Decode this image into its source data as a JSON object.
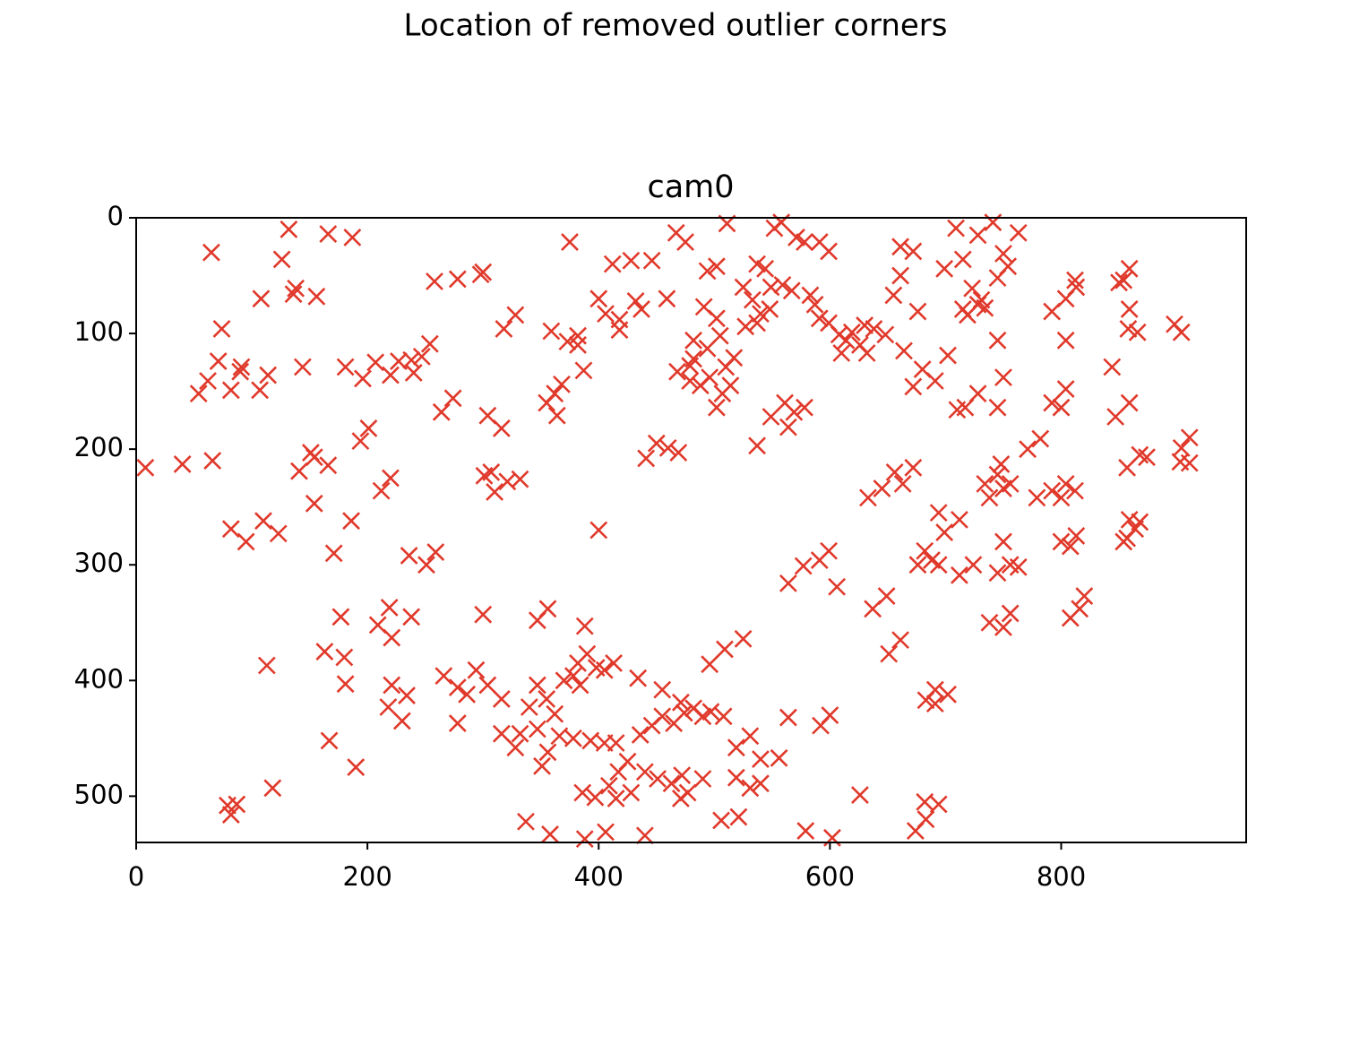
{
  "chart_data": {
    "type": "scatter",
    "title": "Location of removed outlier corners",
    "subtitle": "cam0",
    "color": "#e0392b",
    "xlim": [
      0,
      960
    ],
    "ylim": [
      540,
      0
    ],
    "xticks": [
      0,
      200,
      400,
      600,
      800
    ],
    "yticks": [
      0,
      100,
      200,
      300,
      400,
      500
    ],
    "x": [
      8,
      40,
      66,
      65,
      74,
      71,
      54,
      62,
      82,
      91,
      90,
      108,
      107,
      114,
      126,
      132,
      136,
      138,
      156,
      144,
      166,
      187,
      181,
      196,
      207,
      220,
      227,
      238,
      240,
      247,
      254,
      258,
      278,
      298,
      300,
      328,
      318,
      274,
      264,
      304,
      316,
      141,
      151,
      154,
      166,
      154,
      201,
      194,
      212,
      220,
      82,
      95,
      110,
      123,
      171,
      186,
      236,
      251,
      259,
      301,
      310,
      307,
      332,
      321,
      359,
      375,
      362,
      364,
      368,
      382,
      373,
      387,
      355,
      400,
      406,
      412,
      418,
      418,
      428,
      437,
      446,
      459,
      432,
      467,
      475,
      441,
      450,
      460,
      469,
      400,
      491,
      502,
      494,
      511,
      468,
      479,
      482,
      494,
      496,
      507,
      510,
      514,
      502,
      505,
      482,
      488,
      479,
      517,
      502,
      525,
      533,
      537,
      544,
      540,
      548,
      549,
      537,
      527,
      559,
      567,
      571,
      578,
      552,
      558,
      591,
      599,
      583,
      587,
      591,
      599,
      608,
      614,
      619,
      626,
      630,
      638,
      648,
      632,
      610,
      655,
      661,
      661,
      672,
      676,
      664,
      672,
      680,
      691,
      702,
      699,
      709,
      715,
      719,
      728,
      731,
      723,
      734,
      715,
      728,
      741,
      745,
      754,
      750,
      763,
      745,
      750,
      745,
      728,
      710,
      717,
      549,
      561,
      569,
      578,
      564,
      537,
      792,
      804,
      813,
      812,
      804,
      792,
      804,
      800,
      850,
      854,
      859,
      859,
      866,
      858,
      898,
      904,
      844,
      847,
      859,
      771,
      782,
      779,
      792,
      804,
      812,
      800,
      748,
      745,
      750,
      756,
      734,
      738,
      857,
      868,
      874,
      904,
      911,
      911,
      903,
      859,
      864,
      857,
      868,
      854,
      800,
      808,
      813,
      820,
      816,
      808,
      750,
      756,
      763,
      745,
      724,
      712,
      694,
      682,
      699,
      694,
      712,
      676,
      738,
      750,
      756,
      688,
      656,
      672,
      645,
      633,
      663,
      599,
      591,
      577,
      564,
      606,
      637,
      649,
      661,
      651,
      691,
      702,
      683,
      691,
      674,
      683,
      694,
      682,
      626,
      602,
      579,
      592,
      600,
      390,
      398,
      382,
      378,
      370,
      384,
      405,
      413,
      347,
      355,
      362,
      340,
      332,
      347,
      328,
      316,
      351,
      356,
      366,
      378,
      393,
      405,
      415,
      425,
      417,
      409,
      397,
      386,
      415,
      428,
      440,
      451,
      463,
      472,
      477,
      471,
      490,
      436,
      446,
      455,
      465,
      474,
      482,
      490,
      497,
      508,
      455,
      471,
      434,
      347,
      356,
      388,
      300,
      266,
      278,
      286,
      294,
      304,
      278,
      316,
      219,
      238,
      209,
      221,
      163,
      180,
      181,
      177,
      113,
      167,
      190,
      118,
      82,
      87,
      79,
      221,
      234,
      230,
      218,
      337,
      358,
      388,
      406,
      440,
      496,
      509,
      525,
      519,
      531,
      519,
      531,
      540,
      556,
      540,
      564,
      506,
      521,
      382
    ],
    "values": [
      216,
      213,
      210,
      30,
      96,
      124,
      152,
      141,
      149,
      129,
      133,
      70,
      149,
      136,
      36,
      10,
      66,
      61,
      68,
      129,
      14,
      17,
      129,
      139,
      125,
      136,
      124,
      123,
      134,
      120,
      109,
      55,
      53,
      49,
      47,
      84,
      96,
      156,
      168,
      171,
      182,
      219,
      203,
      207,
      214,
      247,
      182,
      193,
      236,
      225,
      269,
      280,
      262,
      273,
      290,
      262,
      292,
      300,
      289,
      223,
      237,
      220,
      226,
      228,
      98,
      21,
      152,
      171,
      144,
      102,
      107,
      132,
      160,
      70,
      83,
      40,
      88,
      97,
      37,
      79,
      37,
      70,
      72,
      13,
      21,
      208,
      195,
      199,
      203,
      270,
      77,
      42,
      46,
      5,
      133,
      141,
      122,
      113,
      138,
      152,
      129,
      145,
      87,
      102,
      106,
      145,
      128,
      121,
      164,
      60,
      71,
      40,
      44,
      83,
      79,
      60,
      91,
      94,
      58,
      63,
      17,
      21,
      9,
      4,
      21,
      29,
      67,
      75,
      87,
      91,
      101,
      106,
      99,
      110,
      93,
      96,
      101,
      117,
      117,
      67,
      50,
      25,
      29,
      81,
      115,
      146,
      131,
      141,
      119,
      44,
      9,
      36,
      84,
      75,
      71,
      61,
      78,
      79,
      15,
      4,
      52,
      42,
      31,
      13,
      106,
      138,
      164,
      152,
      166,
      164,
      172,
      160,
      168,
      164,
      181,
      197,
      81,
      70,
      60,
      54,
      106,
      160,
      148,
      164,
      56,
      54,
      44,
      79,
      99,
      96,
      92,
      99,
      129,
      172,
      160,
      200,
      191,
      242,
      236,
      230,
      236,
      242,
      213,
      222,
      234,
      230,
      230,
      242,
      216,
      205,
      207,
      199,
      190,
      212,
      211,
      261,
      269,
      277,
      263,
      280,
      280,
      284,
      275,
      327,
      338,
      346,
      280,
      300,
      302,
      307,
      300,
      309,
      300,
      288,
      272,
      255,
      261,
      300,
      350,
      354,
      342,
      296,
      220,
      216,
      234,
      242,
      230,
      288,
      296,
      301,
      316,
      319,
      338,
      327,
      365,
      377,
      408,
      412,
      417,
      420,
      530,
      520,
      507,
      505,
      499,
      536,
      530,
      439,
      430,
      377,
      389,
      385,
      396,
      400,
      404,
      391,
      385,
      404,
      416,
      429,
      423,
      446,
      442,
      458,
      446,
      474,
      462,
      448,
      450,
      452,
      454,
      454,
      470,
      479,
      491,
      501,
      497,
      502,
      497,
      479,
      485,
      489,
      482,
      497,
      502,
      485,
      447,
      439,
      431,
      437,
      428,
      424,
      431,
      427,
      431,
      408,
      419,
      398,
      348,
      338,
      353,
      343,
      396,
      406,
      412,
      391,
      404,
      437,
      416,
      337,
      345,
      352,
      363,
      375,
      380,
      403,
      345,
      387,
      452,
      475,
      493,
      516,
      507,
      508,
      404,
      413,
      435,
      423,
      522,
      533,
      537,
      531,
      534,
      386,
      373,
      364,
      458,
      448,
      484,
      493,
      489,
      467,
      468,
      432,
      521,
      518,
      110
    ]
  }
}
